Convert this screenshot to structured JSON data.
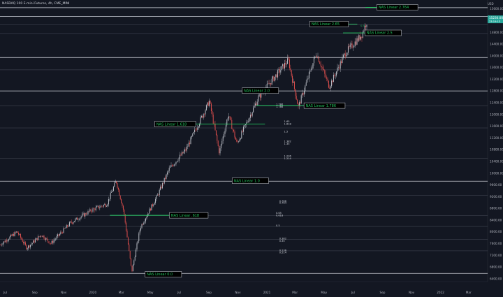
{
  "header": {
    "symbol_title": "NASDAQ 100 E-mini Futures, 4h, CME_MINI",
    "currency": "USD"
  },
  "colors": {
    "background": "#131722",
    "candle_up": "#c8cbd3",
    "candle_down": "#ef5350",
    "level_line": "#d1d4dc",
    "level_line_dim": "#4a4f5c",
    "label_green": "#22c55e",
    "label_box_bg": "#000000",
    "last_price_tag": "#26a69a"
  },
  "chart_data": {
    "type": "candlestick",
    "x_range": [
      "2019-06-20",
      "2022-04-10"
    ],
    "x_ticks": [
      {
        "date": "2019-07-01",
        "label": "Jul"
      },
      {
        "date": "2019-09-01",
        "label": "Sep"
      },
      {
        "date": "2019-11-01",
        "label": "Nov"
      },
      {
        "date": "2020-01-01",
        "label": "2020"
      },
      {
        "date": "2020-03-01",
        "label": "Mar"
      },
      {
        "date": "2020-05-01",
        "label": "May"
      },
      {
        "date": "2020-07-01",
        "label": "Jul"
      },
      {
        "date": "2020-09-01",
        "label": "Sep"
      },
      {
        "date": "2020-11-01",
        "label": "Nov"
      },
      {
        "date": "2021-01-01",
        "label": "2021"
      },
      {
        "date": "2021-03-01",
        "label": "Mar"
      },
      {
        "date": "2021-05-01",
        "label": "May"
      },
      {
        "date": "2021-07-01",
        "label": "Jul"
      },
      {
        "date": "2021-09-01",
        "label": "Sep"
      },
      {
        "date": "2021-11-01",
        "label": "Nov"
      },
      {
        "date": "2022-01-01",
        "label": "2022"
      },
      {
        "date": "2022-03-01",
        "label": "Mar"
      }
    ],
    "y_range": [
      6300,
      15900
    ],
    "y_ticks": [
      {
        "v": 15600,
        "label": "15600.00"
      },
      {
        "v": 15200,
        "label": "15200.00"
      },
      {
        "v": 14800,
        "label": "14800.00"
      },
      {
        "v": 14400,
        "label": "14400.00"
      },
      {
        "v": 14000,
        "label": "14000.00"
      },
      {
        "v": 13600,
        "label": "13600.00"
      },
      {
        "v": 13200,
        "label": "13200.00"
      },
      {
        "v": 12800,
        "label": "12800.00"
      },
      {
        "v": 12400,
        "label": "12400.00"
      },
      {
        "v": 12000,
        "label": "12000.00"
      },
      {
        "v": 11600,
        "label": "11600.00"
      },
      {
        "v": 11200,
        "label": "11200.00"
      },
      {
        "v": 10800,
        "label": "10800.00"
      },
      {
        "v": 10400,
        "label": "10400.00"
      },
      {
        "v": 10000,
        "label": "10000.00"
      },
      {
        "v": 9600,
        "label": "9600.00"
      },
      {
        "v": 9200,
        "label": "9200.00"
      },
      {
        "v": 8800,
        "label": "8800.00"
      },
      {
        "v": 8400,
        "label": "8400.00"
      },
      {
        "v": 8000,
        "label": "8000.00"
      },
      {
        "v": 7600,
        "label": "7600.00"
      },
      {
        "v": 7200,
        "label": "7200.00"
      },
      {
        "v": 6800,
        "label": "6800.00"
      },
      {
        "v": 6400,
        "label": "6400.00"
      }
    ],
    "price_path": [
      {
        "date": "2019-06-20",
        "close": 7550
      },
      {
        "date": "2019-07-26",
        "close": 8000
      },
      {
        "date": "2019-08-15",
        "close": 7450
      },
      {
        "date": "2019-09-15",
        "close": 7900
      },
      {
        "date": "2019-10-05",
        "close": 7600
      },
      {
        "date": "2019-11-15",
        "close": 8300
      },
      {
        "date": "2019-12-31",
        "close": 8750
      },
      {
        "date": "2020-01-31",
        "close": 8950
      },
      {
        "date": "2020-02-19",
        "close": 9740
      },
      {
        "date": "2020-03-06",
        "close": 8700
      },
      {
        "date": "2020-03-23",
        "close": 6630
      },
      {
        "date": "2020-04-10",
        "close": 8150
      },
      {
        "date": "2020-05-15",
        "close": 9200
      },
      {
        "date": "2020-06-10",
        "close": 10150
      },
      {
        "date": "2020-07-15",
        "close": 10800
      },
      {
        "date": "2020-09-02",
        "close": 12450
      },
      {
        "date": "2020-09-23",
        "close": 10700
      },
      {
        "date": "2020-10-12",
        "close": 12000
      },
      {
        "date": "2020-10-30",
        "close": 11000
      },
      {
        "date": "2020-12-15",
        "close": 12600
      },
      {
        "date": "2021-02-15",
        "close": 13850
      },
      {
        "date": "2021-03-08",
        "close": 12250
      },
      {
        "date": "2021-04-15",
        "close": 14100
      },
      {
        "date": "2021-05-12",
        "close": 12950
      },
      {
        "date": "2021-06-15",
        "close": 14100
      },
      {
        "date": "2021-07-19",
        "close": 14700
      },
      {
        "date": "2021-08-01",
        "close": 15250
      }
    ],
    "level_rows": [
      {
        "v": 15640,
        "dim": false
      },
      {
        "v": 15340,
        "dim": false
      },
      {
        "v": 15050,
        "dim": true
      },
      {
        "v": 14760,
        "dim": true
      },
      {
        "v": 13940,
        "dim": false
      },
      {
        "v": 13520,
        "dim": true
      },
      {
        "v": 12800,
        "dim": false
      },
      {
        "v": 12290,
        "dim": true
      },
      {
        "v": 11540,
        "dim": true
      },
      {
        "v": 10510,
        "dim": true
      },
      {
        "v": 9725,
        "dim": false
      },
      {
        "v": 9240,
        "dim": true
      },
      {
        "v": 8550,
        "dim": true
      },
      {
        "v": 8180,
        "dim": true
      },
      {
        "v": 7740,
        "dim": true
      },
      {
        "v": 7350,
        "dim": true
      },
      {
        "v": 6580,
        "dim": false
      }
    ],
    "level_annotations": [
      {
        "text": "NAS Linear 2.764",
        "date": "2021-08-20",
        "v": 15650,
        "line_from": "2021-07-27",
        "line_to": "2021-08-20"
      },
      {
        "text": "NAS Linear 2.65",
        "date": "2021-04-01",
        "v": 15080,
        "line_from": "2021-05-20",
        "line_to": "2021-07-10"
      },
      {
        "text": "NAS Linear 2.5",
        "date": "2021-07-26",
        "v": 14780,
        "line_from": "2021-06-10",
        "line_to": "2021-07-26"
      },
      {
        "text": "NAS Linear 2.0",
        "date": "2020-11-10",
        "v": 12810,
        "line_from": "",
        "line_to": ""
      },
      {
        "text": "NAS Linear 1.786",
        "date": "2021-03-20",
        "v": 12300,
        "line_from": "2020-12-10",
        "line_to": "2021-03-20"
      },
      {
        "text": "NAS Linear 1.618",
        "date": "2020-05-10",
        "v": 11670,
        "line_from": "2020-06-20",
        "line_to": "2020-12-28"
      },
      {
        "text": "NAS Linear 1.0",
        "date": "2020-10-20",
        "v": 9740,
        "line_from": "",
        "line_to": ""
      },
      {
        "text": "NAS Linear .618",
        "date": "2020-06-10",
        "v": 8560,
        "line_from": "2020-02-06",
        "line_to": "2020-06-10"
      },
      {
        "text": "NAS Linear 0.0",
        "date": "2020-04-20",
        "v": 6550,
        "line_from": "",
        "line_to": ""
      }
    ],
    "fib_labels": [
      {
        "text": "0.5",
        "date": "2021-07-17",
        "v": 15020
      },
      {
        "text": "1.786",
        "date": "2021-01-20",
        "v": 12340
      },
      {
        "text": "1.786",
        "date": "2021-01-20",
        "v": 12260
      },
      {
        "text": "1.65",
        "date": "2021-02-06",
        "v": 11760
      },
      {
        "text": "1.618",
        "date": "2021-02-06",
        "v": 11680
      },
      {
        "text": "1.5",
        "date": "2021-02-06",
        "v": 11420
      },
      {
        "text": "1.382",
        "date": "2021-02-06",
        "v": 11080
      },
      {
        "text": "1.35",
        "date": "2021-02-06",
        "v": 11000
      },
      {
        "text": "1.236",
        "date": "2021-02-06",
        "v": 10580
      },
      {
        "text": "1.214",
        "date": "2021-02-06",
        "v": 10500
      },
      {
        "text": "0.786",
        "date": "2021-01-27",
        "v": 9050
      },
      {
        "text": "0.764",
        "date": "2021-01-27",
        "v": 8990
      },
      {
        "text": "0.65",
        "date": "2021-01-20",
        "v": 8640
      },
      {
        "text": "0.618",
        "date": "2021-01-20",
        "v": 8560
      },
      {
        "text": "0.5",
        "date": "2021-01-20",
        "v": 8210
      },
      {
        "text": "0.382",
        "date": "2021-01-27",
        "v": 7770
      },
      {
        "text": "0.35",
        "date": "2021-01-27",
        "v": 7690
      },
      {
        "text": "0.236",
        "date": "2021-01-27",
        "v": 7360
      },
      {
        "text": "0.214",
        "date": "2021-01-27",
        "v": 7290
      }
    ],
    "last_price": {
      "label": "15230.00",
      "sub_label": "23:19:13",
      "v": 15230
    }
  }
}
